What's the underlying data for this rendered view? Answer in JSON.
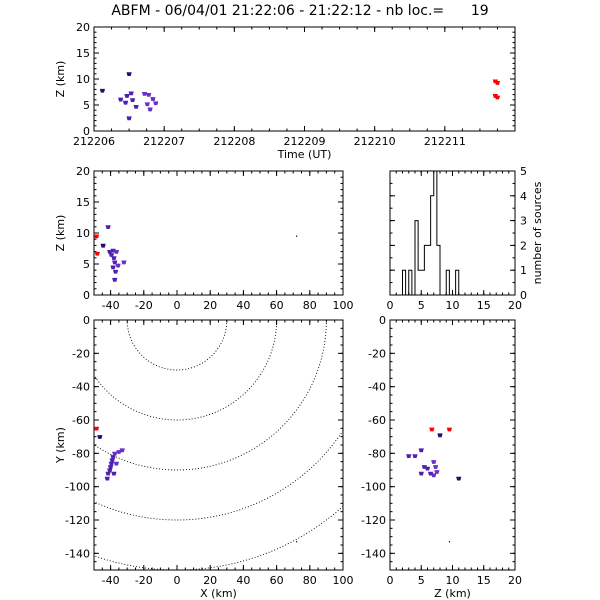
{
  "title": "ABFM - 06/04/01 21:22:06 - 21:22:12 - nb loc.=      19",
  "chart_data": [
    {
      "panel": "time-altitude",
      "type": "scatter",
      "xlabel": "Time (UT)",
      "ylabel": "Z (km)",
      "xlim": [
        212206,
        212212
      ],
      "ylim": [
        0,
        20
      ],
      "xticks": [
        "212206",
        "212207",
        "212208",
        "212209",
        "212210",
        "212211"
      ],
      "yticks": [
        "0",
        "5",
        "10",
        "15",
        "20"
      ],
      "points": [
        {
          "x": 212206.12,
          "y": 7.8,
          "color": "#2a0a6e"
        },
        {
          "x": 212206.38,
          "y": 6.1,
          "color": "#5020b0"
        },
        {
          "x": 212206.45,
          "y": 5.5,
          "color": "#5020b0"
        },
        {
          "x": 212206.47,
          "y": 6.8,
          "color": "#5020b0"
        },
        {
          "x": 212206.5,
          "y": 11.0,
          "color": "#2a0a6e"
        },
        {
          "x": 212206.53,
          "y": 7.3,
          "color": "#5020b0"
        },
        {
          "x": 212206.5,
          "y": 2.5,
          "color": "#5020b0"
        },
        {
          "x": 212206.55,
          "y": 6.0,
          "color": "#5020b0"
        },
        {
          "x": 212206.6,
          "y": 4.7,
          "color": "#5020b0"
        },
        {
          "x": 212206.72,
          "y": 7.2,
          "color": "#6a2fc8"
        },
        {
          "x": 212206.76,
          "y": 5.2,
          "color": "#6a2fc8"
        },
        {
          "x": 212206.78,
          "y": 7.0,
          "color": "#6a2fc8"
        },
        {
          "x": 212206.8,
          "y": 4.2,
          "color": "#6a2fc8"
        },
        {
          "x": 212206.84,
          "y": 6.2,
          "color": "#6a2fc8"
        },
        {
          "x": 212206.88,
          "y": 5.4,
          "color": "#6a2fc8"
        },
        {
          "x": 212211.72,
          "y": 9.6,
          "color": "#ff0000"
        },
        {
          "x": 212211.75,
          "y": 9.3,
          "color": "#ff0000"
        },
        {
          "x": 212211.72,
          "y": 6.8,
          "color": "#ff0000"
        },
        {
          "x": 212211.75,
          "y": 6.5,
          "color": "#ff0000"
        }
      ]
    },
    {
      "panel": "x-altitude",
      "type": "scatter",
      "xlabel": "",
      "ylabel": "Z (km)",
      "xlim": [
        -50,
        100
      ],
      "ylim": [
        0,
        20
      ],
      "xticks": [
        "-40",
        "-20",
        "0",
        "20",
        "40",
        "60",
        "80",
        "100"
      ],
      "yticks": [
        "0",
        "5",
        "10",
        "15",
        "20"
      ],
      "points": [
        {
          "x": -48.5,
          "y": 9.5,
          "color": "#ff0000"
        },
        {
          "x": -48.0,
          "y": 6.7,
          "color": "#ff0000"
        },
        {
          "x": -44.5,
          "y": 8.0,
          "color": "#2a0a6e"
        },
        {
          "x": -41.5,
          "y": 11.0,
          "color": "#5020b0"
        },
        {
          "x": -40.5,
          "y": 7.0,
          "color": "#5020b0"
        },
        {
          "x": -39.5,
          "y": 6.5,
          "color": "#5020b0"
        },
        {
          "x": -38.5,
          "y": 7.2,
          "color": "#5020b0"
        },
        {
          "x": -38.0,
          "y": 6.0,
          "color": "#5020b0"
        },
        {
          "x": -37.5,
          "y": 5.3,
          "color": "#5020b0"
        },
        {
          "x": -37.5,
          "y": 2.5,
          "color": "#5020b0"
        },
        {
          "x": -38.5,
          "y": 4.5,
          "color": "#5020b0"
        },
        {
          "x": -37.0,
          "y": 3.8,
          "color": "#5020b0"
        },
        {
          "x": -36.5,
          "y": 7.0,
          "color": "#6a2fc8"
        },
        {
          "x": -35.5,
          "y": 4.8,
          "color": "#6a2fc8"
        },
        {
          "x": -32.0,
          "y": 5.3,
          "color": "#6a2fc8"
        },
        {
          "x": 72.0,
          "y": 9.5,
          "color": "#000000",
          "tiny": true
        }
      ]
    },
    {
      "panel": "altitude-histogram",
      "type": "histogram",
      "xlabel": "",
      "ylabel": "number of sources",
      "xlim": [
        0,
        20
      ],
      "ylim": [
        0,
        5
      ],
      "xticks": [
        "0",
        "5",
        "10",
        "15",
        "20"
      ],
      "yticks": [
        "0",
        "1",
        "2",
        "3",
        "4",
        "5"
      ],
      "bin_width": 0.5,
      "bins_start": [
        0,
        0.5,
        1,
        1.5,
        2,
        2.5,
        3,
        3.5,
        4,
        4.5,
        5,
        5.5,
        6,
        6.5,
        7,
        7.5,
        8,
        8.5,
        9,
        9.5,
        10,
        10.5,
        11,
        11.5
      ],
      "counts": [
        0,
        0,
        0,
        0,
        1,
        0,
        1,
        0,
        3,
        1,
        1,
        2,
        2,
        4,
        5,
        2,
        0,
        0,
        1,
        0,
        0,
        1,
        0,
        0
      ]
    },
    {
      "panel": "plan-view",
      "type": "scatter",
      "xlabel": "X (km)",
      "ylabel": "Y (km)",
      "xlim": [
        -50,
        100
      ],
      "ylim": [
        -150,
        0
      ],
      "xticks": [
        "-40",
        "-20",
        "0",
        "20",
        "40",
        "60",
        "80",
        "100"
      ],
      "yticks": [
        "-140",
        "-120",
        "-100",
        "-80",
        "-60",
        "-40",
        "-20",
        "0"
      ],
      "range_rings_km": [
        30,
        60,
        90,
        120,
        150
      ],
      "ring_center": [
        0,
        0
      ],
      "points": [
        {
          "x": -48.5,
          "y": -65.0,
          "color": "#ff0000"
        },
        {
          "x": -46.5,
          "y": -70.0,
          "color": "#2a0a6e"
        },
        {
          "x": -42.0,
          "y": -95.0,
          "color": "#5020b0"
        },
        {
          "x": -41.5,
          "y": -92.0,
          "color": "#5020b0"
        },
        {
          "x": -40.5,
          "y": -90.0,
          "color": "#5020b0"
        },
        {
          "x": -40.0,
          "y": -88.0,
          "color": "#5020b0"
        },
        {
          "x": -39.5,
          "y": -86.0,
          "color": "#5020b0"
        },
        {
          "x": -39.0,
          "y": -84.0,
          "color": "#5020b0"
        },
        {
          "x": -38.5,
          "y": -82.0,
          "color": "#5020b0"
        },
        {
          "x": -38.0,
          "y": -92.0,
          "color": "#5020b0"
        },
        {
          "x": -37.5,
          "y": -80.0,
          "color": "#6a2fc8"
        },
        {
          "x": -36.5,
          "y": -86.0,
          "color": "#6a2fc8"
        },
        {
          "x": -35.0,
          "y": -79.0,
          "color": "#6a2fc8"
        },
        {
          "x": -33.0,
          "y": -78.0,
          "color": "#6a2fc8"
        },
        {
          "x": 72.0,
          "y": -133.0,
          "color": "#000000",
          "tiny": true
        }
      ]
    },
    {
      "panel": "altitude-y",
      "type": "scatter",
      "xlabel": "Z (km)",
      "ylabel": "",
      "xlim": [
        0,
        20
      ],
      "ylim": [
        -150,
        0
      ],
      "xticks": [
        "0",
        "5",
        "10",
        "15",
        "20"
      ],
      "yticks": [
        "-140",
        "-120",
        "-100",
        "-80",
        "-60",
        "-40",
        "-20",
        "0"
      ],
      "points": [
        {
          "x": 6.7,
          "y": -65.5,
          "color": "#ff0000"
        },
        {
          "x": 9.5,
          "y": -65.5,
          "color": "#ff0000"
        },
        {
          "x": 8.0,
          "y": -69.0,
          "color": "#2a0a6e"
        },
        {
          "x": 3.0,
          "y": -81.5,
          "color": "#5020b0"
        },
        {
          "x": 4.0,
          "y": -81.5,
          "color": "#5020b0"
        },
        {
          "x": 5.0,
          "y": -78.0,
          "color": "#5020b0"
        },
        {
          "x": 5.5,
          "y": -88.0,
          "color": "#5020b0"
        },
        {
          "x": 5.0,
          "y": -92.0,
          "color": "#5020b0"
        },
        {
          "x": 6.0,
          "y": -89.0,
          "color": "#5020b0"
        },
        {
          "x": 6.5,
          "y": -92.0,
          "color": "#5020b0"
        },
        {
          "x": 7.0,
          "y": -85.0,
          "color": "#6a2fc8"
        },
        {
          "x": 7.3,
          "y": -88.0,
          "color": "#6a2fc8"
        },
        {
          "x": 7.5,
          "y": -91.0,
          "color": "#6a2fc8"
        },
        {
          "x": 7.0,
          "y": -93.0,
          "color": "#6a2fc8"
        },
        {
          "x": 11.0,
          "y": -95.0,
          "color": "#2a0a6e"
        },
        {
          "x": 9.5,
          "y": -133.0,
          "color": "#000000",
          "tiny": true
        }
      ]
    }
  ]
}
